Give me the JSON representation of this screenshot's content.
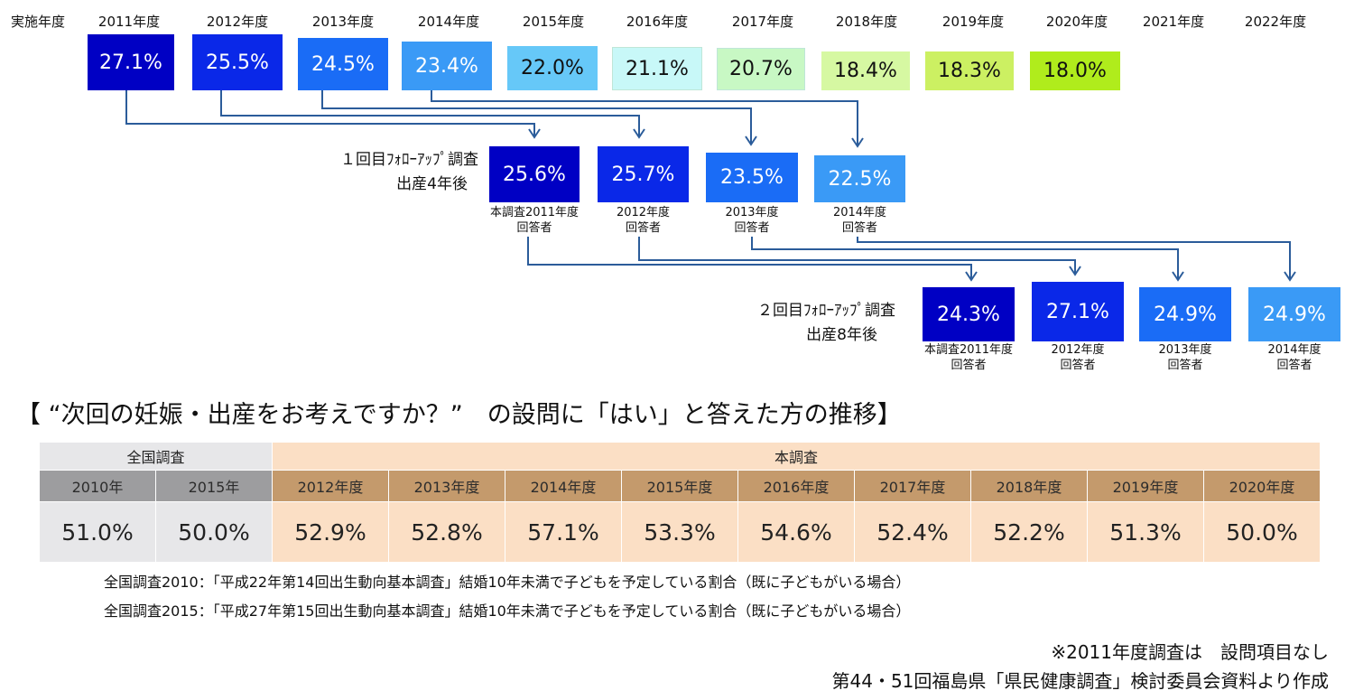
{
  "header_label": "実施年度",
  "years": [
    "2011年度",
    "2012年度",
    "2013年度",
    "2014年度",
    "2015年度",
    "2016年度",
    "2017年度",
    "2018年度",
    "2019年度",
    "2020年度",
    "2021年度",
    "2022年度"
  ],
  "colors": {
    "level_2011": "#0000c4",
    "level_2012": "#0a28e8",
    "level_2013": "#1a6cf6",
    "level_2014": "#3a9af6",
    "level_2015": "#66c8f8",
    "level_2016": "#c8f8f8",
    "level_2017": "#c8f8c4",
    "level_2018": "#d6f8a2",
    "level_2019": "#ccf062",
    "level_2020": "#b0ec1c",
    "arrow": "#2b5c9a"
  },
  "followup1": {
    "title": "１回目ﾌｫﾛｰｱｯﾌﾟ調査",
    "subtitle": "出産4年後",
    "labels": [
      [
        "本調査2011年度",
        "回答者"
      ],
      [
        "2012年度",
        "回答者"
      ],
      [
        "2013年度",
        "回答者"
      ],
      [
        "2014年度",
        "回答者"
      ]
    ]
  },
  "followup2": {
    "title": "２回目ﾌｫﾛｰｱｯﾌﾟ調査",
    "subtitle": "出産8年後",
    "labels": [
      [
        "本調査2011年度",
        "回答者"
      ],
      [
        "2012年度",
        "回答者"
      ],
      [
        "2013年度",
        "回答者"
      ],
      [
        "2014年度",
        "回答者"
      ]
    ]
  },
  "chart_data": [
    {
      "type": "table",
      "series": [
        {
          "name": "実施年度",
          "categories": [
            "2011年度",
            "2012年度",
            "2013年度",
            "2014年度",
            "2015年度",
            "2016年度",
            "2017年度",
            "2018年度",
            "2019年度",
            "2020年度",
            "2021年度",
            "2022年度"
          ],
          "values": [
            27.1,
            25.5,
            24.5,
            23.4,
            22.0,
            21.1,
            20.7,
            18.4,
            18.3,
            18.0,
            null,
            null
          ],
          "labels": [
            "27.1%",
            "25.5%",
            "24.5%",
            "23.4%",
            "22.0%",
            "21.1%",
            "20.7%",
            "18.4%",
            "18.3%",
            "18.0%"
          ]
        },
        {
          "name": "１回目ﾌｫﾛｰｱｯﾌﾟ調査",
          "categories": [
            "本調査2011年度回答者",
            "2012年度回答者",
            "2013年度回答者",
            "2014年度回答者"
          ],
          "values": [
            25.6,
            25.7,
            23.5,
            22.5
          ],
          "labels": [
            "25.6%",
            "25.7%",
            "23.5%",
            "22.5%"
          ]
        },
        {
          "name": "２回目ﾌｫﾛｰｱｯﾌﾟ調査",
          "categories": [
            "本調査2011年度回答者",
            "2012年度回答者",
            "2013年度回答者",
            "2014年度回答者"
          ],
          "values": [
            24.3,
            27.1,
            24.9,
            24.9
          ],
          "labels": [
            "24.3%",
            "27.1%",
            "24.9%",
            "24.9%"
          ]
        }
      ]
    },
    {
      "type": "table",
      "title": "【 “次回の妊娠・出産をお考えですか？”　の設問に「はい」と答えた方の推移】",
      "groups": [
        {
          "name": "全国調査",
          "categories": [
            "2010年",
            "2015年"
          ],
          "values": [
            51.0,
            50.0
          ],
          "labels": [
            "51.0%",
            "50.0%"
          ]
        },
        {
          "name": "本調査",
          "categories": [
            "2012年度",
            "2013年度",
            "2014年度",
            "2015年度",
            "2016年度",
            "2017年度",
            "2018年度",
            "2019年度",
            "2020年度"
          ],
          "values": [
            52.9,
            52.8,
            57.1,
            53.3,
            54.6,
            52.4,
            52.2,
            51.3,
            50.0
          ],
          "labels": [
            "52.9%",
            "52.8%",
            "57.1%",
            "53.3%",
            "54.6%",
            "52.4%",
            "52.2%",
            "51.3%",
            "50.0%"
          ]
        }
      ]
    }
  ],
  "notes": [
    "全国調査2010：「平成22年第14回出生動向基本調査」結婚10年未満で子どもを予定している割合（既に子どもがいる場合）",
    "全国調査2015：「平成27年第15回出生動向基本調査」結婚10年未満で子どもを予定している割合（既に子どもがいる場合）"
  ],
  "footnote": "※2011年度調査は　設問項目なし",
  "source": "第44・51回福島県「県民健康調査」検討委員会資料より作成"
}
